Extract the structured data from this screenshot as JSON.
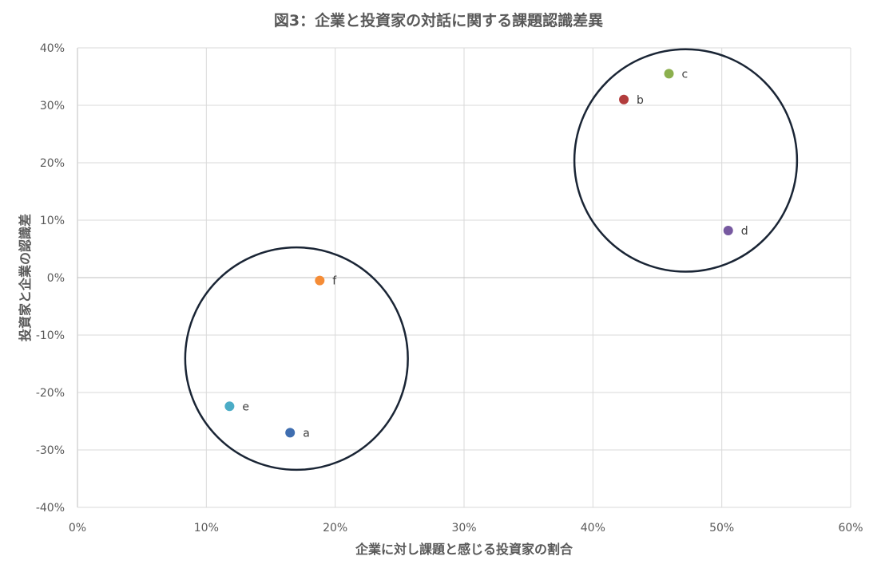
{
  "chart_data": {
    "type": "scatter",
    "title": "図3：企業と投資家の対話に関する課題認識差異",
    "xlabel": "企業に対し課題と感じる投資家の割合",
    "ylabel": "投資家と企業の認識差",
    "xlim": [
      0,
      0.6
    ],
    "ylim": [
      -0.4,
      0.4
    ],
    "x_ticks": [
      {
        "value": 0.0,
        "label": "0%"
      },
      {
        "value": 0.1,
        "label": "10%"
      },
      {
        "value": 0.2,
        "label": "20%"
      },
      {
        "value": 0.3,
        "label": "30%"
      },
      {
        "value": 0.4,
        "label": "40%"
      },
      {
        "value": 0.5,
        "label": "50%"
      },
      {
        "value": 0.6,
        "label": "60%"
      }
    ],
    "y_ticks": [
      {
        "value": 0.4,
        "label": "40%"
      },
      {
        "value": 0.3,
        "label": "30%"
      },
      {
        "value": 0.2,
        "label": "20%"
      },
      {
        "value": 0.1,
        "label": "10%"
      },
      {
        "value": 0.0,
        "label": "0%"
      },
      {
        "value": -0.1,
        "label": "-10%"
      },
      {
        "value": -0.2,
        "label": "-20%"
      },
      {
        "value": -0.3,
        "label": "-30%"
      },
      {
        "value": -0.4,
        "label": "-40%"
      }
    ],
    "grid": true,
    "points": [
      {
        "label": "a",
        "x": 0.165,
        "y": -0.27,
        "color": "#3F6EB0"
      },
      {
        "label": "b",
        "x": 0.424,
        "y": 0.31,
        "color": "#B23C3C"
      },
      {
        "label": "c",
        "x": 0.459,
        "y": 0.355,
        "color": "#8CB04E"
      },
      {
        "label": "d",
        "x": 0.505,
        "y": 0.082,
        "color": "#7759A0"
      },
      {
        "label": "e",
        "x": 0.118,
        "y": -0.224,
        "color": "#4BACC6"
      },
      {
        "label": "f",
        "x": 0.188,
        "y": -0.005,
        "color": "#F58C36"
      }
    ],
    "group_circles": [
      {
        "cx": 0.17,
        "cy": -0.141,
        "rx": 0.0864,
        "ry": 0.1936
      },
      {
        "cx": 0.472,
        "cy": 0.204,
        "rx": 0.0864,
        "ry": 0.1936
      }
    ],
    "circle_color": "#1A2535"
  }
}
